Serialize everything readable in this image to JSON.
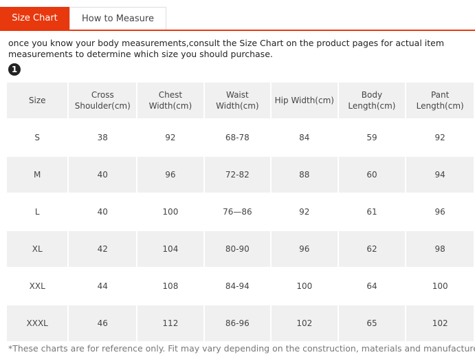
{
  "tabs": [
    "Size Chart",
    "How to Measure"
  ],
  "intro": "once you know your body measurements,consult the Size Chart on the product pages for actual item measurements to determine which size you should purchase.",
  "step": "1",
  "table": {
    "header": [
      "Size",
      "Cross Shoulder(cm)",
      "Chest Width(cm)",
      "Waist Width(cm)",
      "Hip Width(cm)",
      "Body Length(cm)",
      "Pant Length(cm)"
    ],
    "rows": [
      [
        "S",
        "38",
        "92",
        "68-78",
        "84",
        "59",
        "92"
      ],
      [
        "M",
        "40",
        "96",
        "72-82",
        "88",
        "60",
        "94"
      ],
      [
        "L",
        "40",
        "100",
        "76—86",
        "92",
        "61",
        "96"
      ],
      [
        "XL",
        "42",
        "104",
        "80-90",
        "96",
        "62",
        "98"
      ],
      [
        "XXL",
        "44",
        "108",
        "84-94",
        "100",
        "64",
        "100"
      ],
      [
        "XXXL",
        "46",
        "112",
        "86-96",
        "102",
        "65",
        "102"
      ]
    ]
  },
  "footnote": "*These charts are for reference only. Fit may vary depending on the construction, materials and manufacturer."
}
